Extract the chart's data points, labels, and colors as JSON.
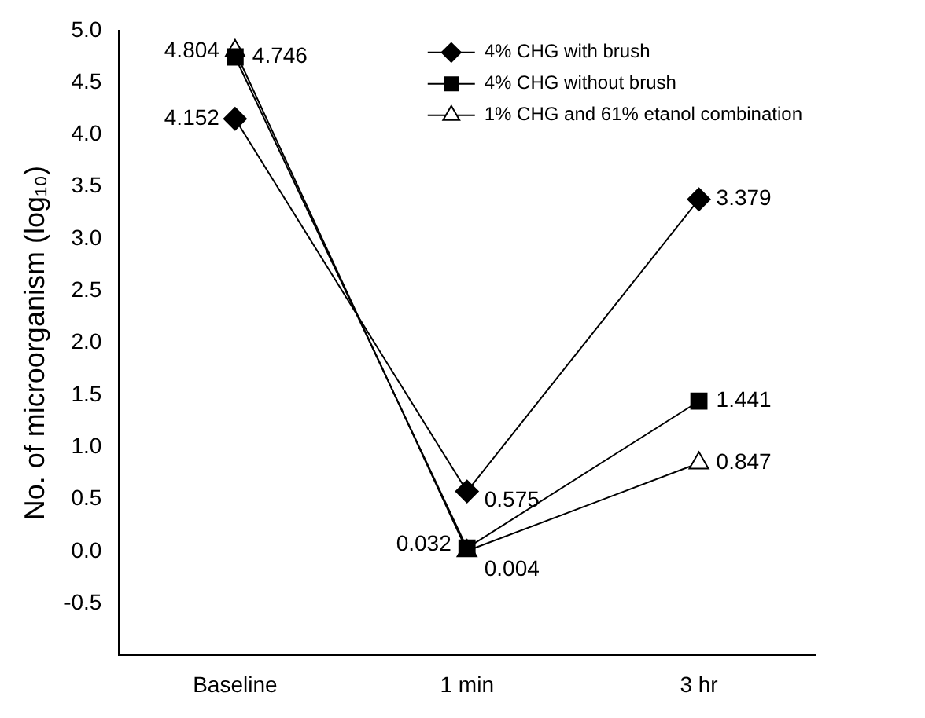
{
  "chart_data": {
    "type": "line",
    "ylabel": "No. of microorganism (log₁₀)",
    "categories": [
      "Baseline",
      "1 min",
      "3 hr"
    ],
    "series": [
      {
        "name": "4% CHG with brush",
        "color": "#000000",
        "marker": "diamond",
        "values": [
          4.152,
          0.575,
          3.379
        ]
      },
      {
        "name": "4% CHG without brush",
        "color": "#000000",
        "marker": "square",
        "values": [
          4.746,
          0.032,
          1.441
        ]
      },
      {
        "name": "1% CHG and 61% etanol combination",
        "color": "#000000",
        "marker": "triangle",
        "values": [
          4.804,
          0.004,
          0.847
        ]
      }
    ],
    "ylim": [
      -1,
      5
    ],
    "yticks": [
      {
        "value": -0.5,
        "label": "-0.5"
      },
      {
        "value": 0,
        "label": "0.0"
      },
      {
        "value": 0.5,
        "label": "0.5"
      },
      {
        "value": 1,
        "label": "1.0"
      },
      {
        "value": 1.5,
        "label": "1.5"
      },
      {
        "value": 2,
        "label": "2.0"
      },
      {
        "value": 2.5,
        "label": "2.5"
      },
      {
        "value": 3,
        "label": "3.0"
      },
      {
        "value": 3.5,
        "label": "3.5"
      },
      {
        "value": 4,
        "label": "4.0"
      },
      {
        "value": 4.5,
        "label": "4.5"
      },
      {
        "value": 5,
        "label": "5.0"
      }
    ],
    "grid": false,
    "legend": "top right",
    "data_labels": true
  }
}
